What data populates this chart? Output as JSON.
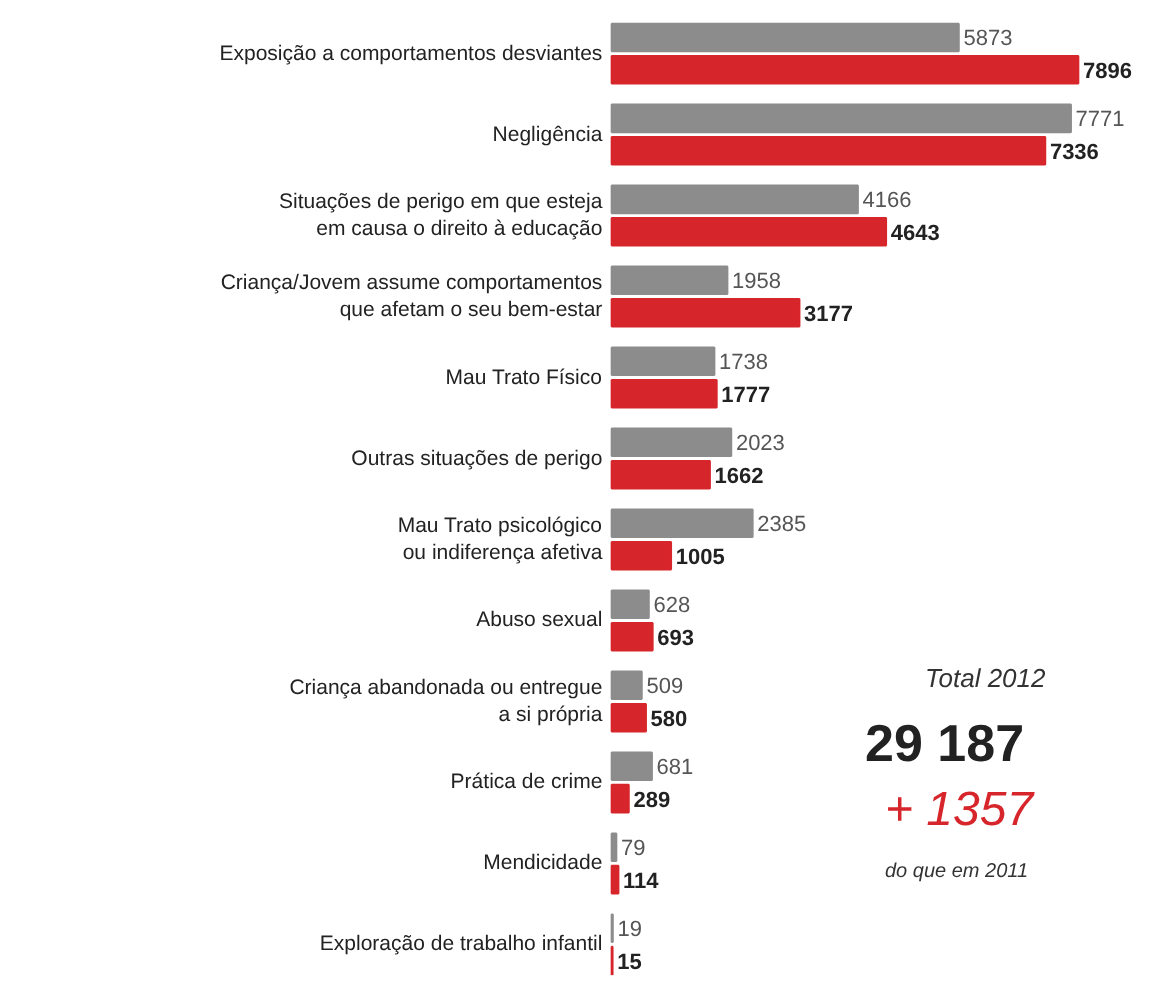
{
  "chart_data": {
    "type": "bar",
    "orientation": "horizontal",
    "data_labels": true,
    "categories": [
      "Exposição a comportamentos desviantes",
      "Negligência",
      "Situações de perigo em que esteja\nem causa o direito à educação",
      "Criança/Jovem assume comportamentos\nque afetam o seu bem-estar",
      "Mau Trato Físico",
      "Outras situações de perigo",
      "Mau Trato psicológico\nou indiferença afetiva",
      "Abuso sexual",
      "Criança abandonada ou entregue\na si própria",
      "Prática de crime",
      "Mendicidade",
      "Exploração de trabalho infantil"
    ],
    "series": [
      {
        "color": "#8c8c8c",
        "values": [
          5873,
          7771,
          4166,
          1958,
          1738,
          2023,
          2385,
          628,
          509,
          681,
          79,
          19
        ]
      },
      {
        "color": "#d7262b",
        "values": [
          7896,
          7336,
          4643,
          3177,
          1777,
          1662,
          1005,
          693,
          580,
          289,
          114,
          15
        ]
      }
    ],
    "annotations": [
      "Total 2012",
      "29 187",
      "+ 1357",
      "do que em 2011"
    ]
  }
}
